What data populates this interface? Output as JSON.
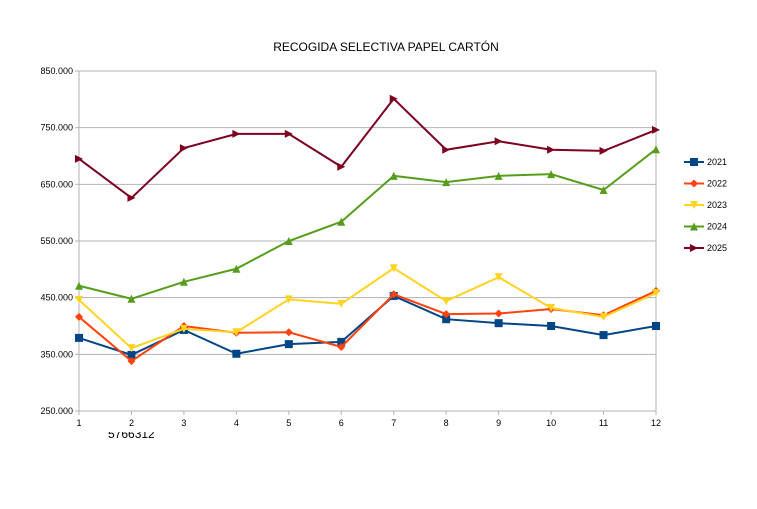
{
  "chart_data": {
    "type": "line",
    "title": "RECOGIDA SELECTIVA PAPEL CARTÓN",
    "x": [
      1,
      2,
      3,
      4,
      5,
      6,
      7,
      8,
      9,
      10,
      11,
      12
    ],
    "ylim": [
      250000,
      850000
    ],
    "yticks": [
      "250.000",
      "350.000",
      "450.000",
      "550.000",
      "650.000",
      "750.000",
      "850.000"
    ],
    "ytick_values": [
      250000,
      350000,
      450000,
      550000,
      650000,
      750000,
      850000
    ],
    "grid": true,
    "legend_position": "right",
    "annotation": "5766312",
    "series": [
      {
        "name": "2021",
        "color": "#004586",
        "marker": "square",
        "values": [
          379000,
          349000,
          393000,
          351000,
          368000,
          372000,
          453000,
          412000,
          405000,
          400000,
          384000,
          400000
        ]
      },
      {
        "name": "2022",
        "color": "#ff420e",
        "marker": "diamond",
        "values": [
          416000,
          338000,
          400000,
          388000,
          389000,
          363000,
          456000,
          421000,
          422000,
          430000,
          419000,
          462000
        ]
      },
      {
        "name": "2023",
        "color": "#ffd320",
        "marker": "triangle-down",
        "values": [
          446000,
          361000,
          395000,
          389000,
          447000,
          439000,
          502000,
          444000,
          486000,
          432000,
          416000,
          458000
        ]
      },
      {
        "name": "2024",
        "color": "#579d1c",
        "marker": "triangle-up",
        "values": [
          471000,
          448000,
          478000,
          501000,
          550000,
          584000,
          665000,
          654000,
          665000,
          668000,
          640000,
          712000
        ]
      },
      {
        "name": "2025",
        "color": "#7e0021",
        "marker": "triangle-right",
        "values": [
          695000,
          626000,
          714000,
          739000,
          739000,
          681000,
          801000,
          711000,
          726000,
          711000,
          709000,
          746000
        ]
      }
    ]
  }
}
